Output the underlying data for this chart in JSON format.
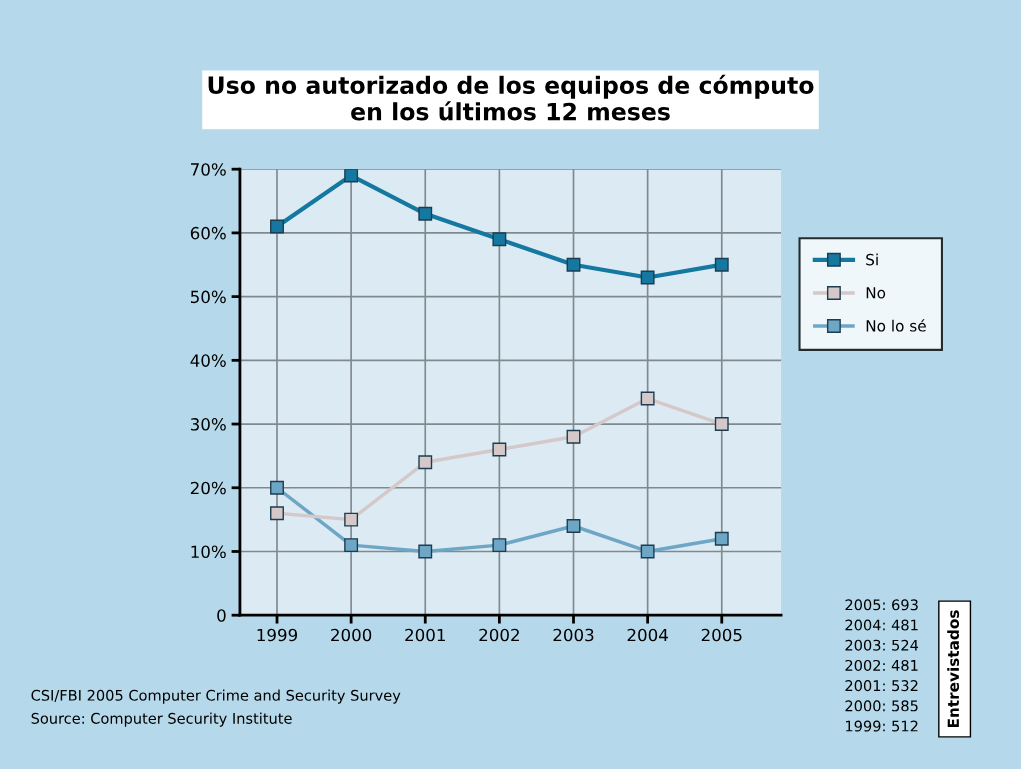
{
  "chart_data": {
    "type": "line",
    "title": "Uso no autorizado de los equipos de cómputo\nen los últimos 12 meses",
    "categories": [
      "1999",
      "2000",
      "2001",
      "2002",
      "2003",
      "2004",
      "2005"
    ],
    "series": [
      {
        "name": "Si",
        "color": "#1478a0",
        "values": [
          61,
          69,
          63,
          59,
          55,
          53,
          55
        ]
      },
      {
        "name": "No",
        "color": "#d4c8c8",
        "values": [
          16,
          15,
          24,
          26,
          28,
          34,
          30
        ]
      },
      {
        "name": "No lo sé",
        "color": "#6ea6c6",
        "values": [
          20,
          11,
          10,
          11,
          14,
          10,
          12
        ]
      }
    ],
    "ylim": [
      0,
      70
    ],
    "yticks": [
      0,
      {
        "value": 10,
        "label": "10%"
      },
      {
        "value": 20,
        "label": "20%"
      },
      {
        "value": 30,
        "label": "30%"
      },
      {
        "value": 40,
        "label": "40%"
      },
      {
        "value": 50,
        "label": "50%"
      },
      {
        "value": 60,
        "label": "60%"
      },
      {
        "value": 70,
        "label": "70%"
      }
    ],
    "grid": true,
    "legend": "right",
    "marker": "square",
    "line_style": "solid",
    "annotations": [
      "CSI/FBI 2005 Computer Crime and Security Survey",
      "Source: Computer Security Institute",
      "2005: 693\n2004: 481\n2003: 524\n2002: 481\n2001: 532\n2000: 585\n1999: 512",
      "Entrevistados"
    ]
  }
}
